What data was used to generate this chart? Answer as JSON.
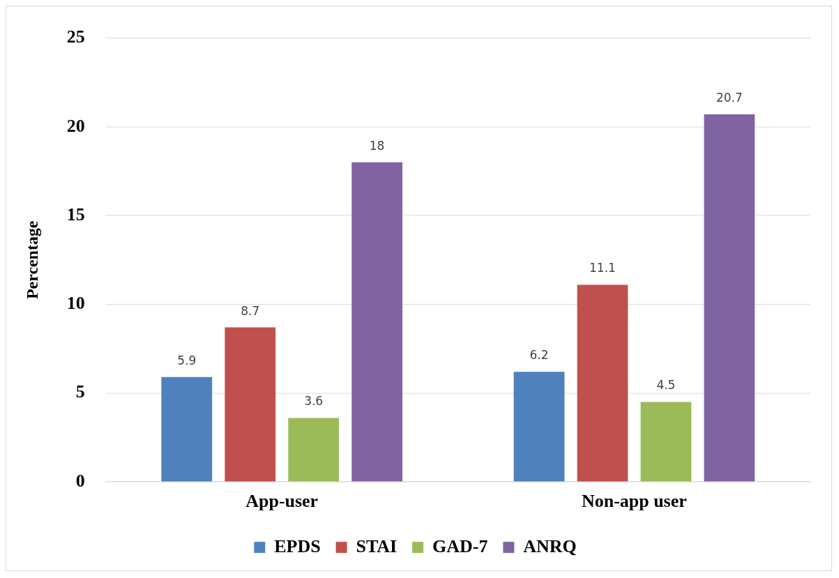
{
  "chart_data": {
    "type": "bar",
    "ylabel": "Percentage",
    "categories": [
      "App-user",
      "Non-app user"
    ],
    "series": [
      {
        "name": "EPDS",
        "color": "#4f81bd",
        "values": [
          5.9,
          6.2
        ]
      },
      {
        "name": "STAI",
        "color": "#c0504d",
        "values": [
          8.7,
          11.1
        ]
      },
      {
        "name": "GAD-7",
        "color": "#9bbb59",
        "values": [
          3.6,
          4.5
        ]
      },
      {
        "name": "ANRQ",
        "color": "#8064a2",
        "values": [
          18,
          20.7
        ]
      }
    ],
    "ylim": [
      0,
      25
    ],
    "yticks": [
      0,
      5,
      10,
      15,
      20,
      25
    ],
    "grid": "y",
    "legend": "bottom",
    "data_labels": true
  }
}
